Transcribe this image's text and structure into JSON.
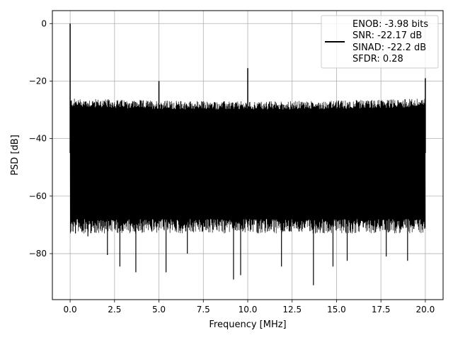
{
  "chart_data": {
    "type": "line",
    "title": "",
    "xlabel": "Frequency [MHz]",
    "ylabel": "PSD [dB]",
    "xlim": [
      -1.0,
      21.0
    ],
    "ylim": [
      -96,
      4.5
    ],
    "xticks": [
      0.0,
      2.5,
      5.0,
      7.5,
      10.0,
      12.5,
      15.0,
      17.5,
      20.0
    ],
    "xtick_labels": [
      "0.0",
      "2.5",
      "5.0",
      "7.5",
      "10.0",
      "12.5",
      "15.0",
      "17.5",
      "20.0"
    ],
    "yticks": [
      0,
      -20,
      -40,
      -60,
      -80
    ],
    "ytick_labels": [
      "0",
      "−20",
      "−40",
      "−60",
      "−80"
    ],
    "grid": true,
    "legend_position": "top-right",
    "series": [
      {
        "label": "",
        "color": "#000000",
        "x_start": 0.0,
        "x_end": 20.0,
        "noise_floor_top_db": -27,
        "noise_floor_bottom_db": -68,
        "peaks": [
          {
            "x": 0.0,
            "y": 0.0
          },
          {
            "x": 5.0,
            "y": -20.0
          },
          {
            "x": 10.0,
            "y": -15.5
          },
          {
            "x": 20.0,
            "y": -19.0
          }
        ],
        "dips": [
          {
            "x": 0.3,
            "y": -73
          },
          {
            "x": 1.0,
            "y": -74
          },
          {
            "x": 2.1,
            "y": -80.5
          },
          {
            "x": 2.8,
            "y": -84.5
          },
          {
            "x": 3.7,
            "y": -86.5
          },
          {
            "x": 5.4,
            "y": -86.5
          },
          {
            "x": 6.6,
            "y": -80
          },
          {
            "x": 9.2,
            "y": -89
          },
          {
            "x": 9.6,
            "y": -87.5
          },
          {
            "x": 11.9,
            "y": -84.5
          },
          {
            "x": 13.7,
            "y": -91
          },
          {
            "x": 14.8,
            "y": -84.5
          },
          {
            "x": 15.6,
            "y": -82.5
          },
          {
            "x": 17.8,
            "y": -81
          },
          {
            "x": 19.0,
            "y": -82.5
          }
        ]
      }
    ],
    "legend_lines": [
      "ENOB: -3.98 bits",
      "SNR: -22.17 dB",
      "SINAD: -22.2 dB",
      "SFDR: 0.28"
    ]
  }
}
